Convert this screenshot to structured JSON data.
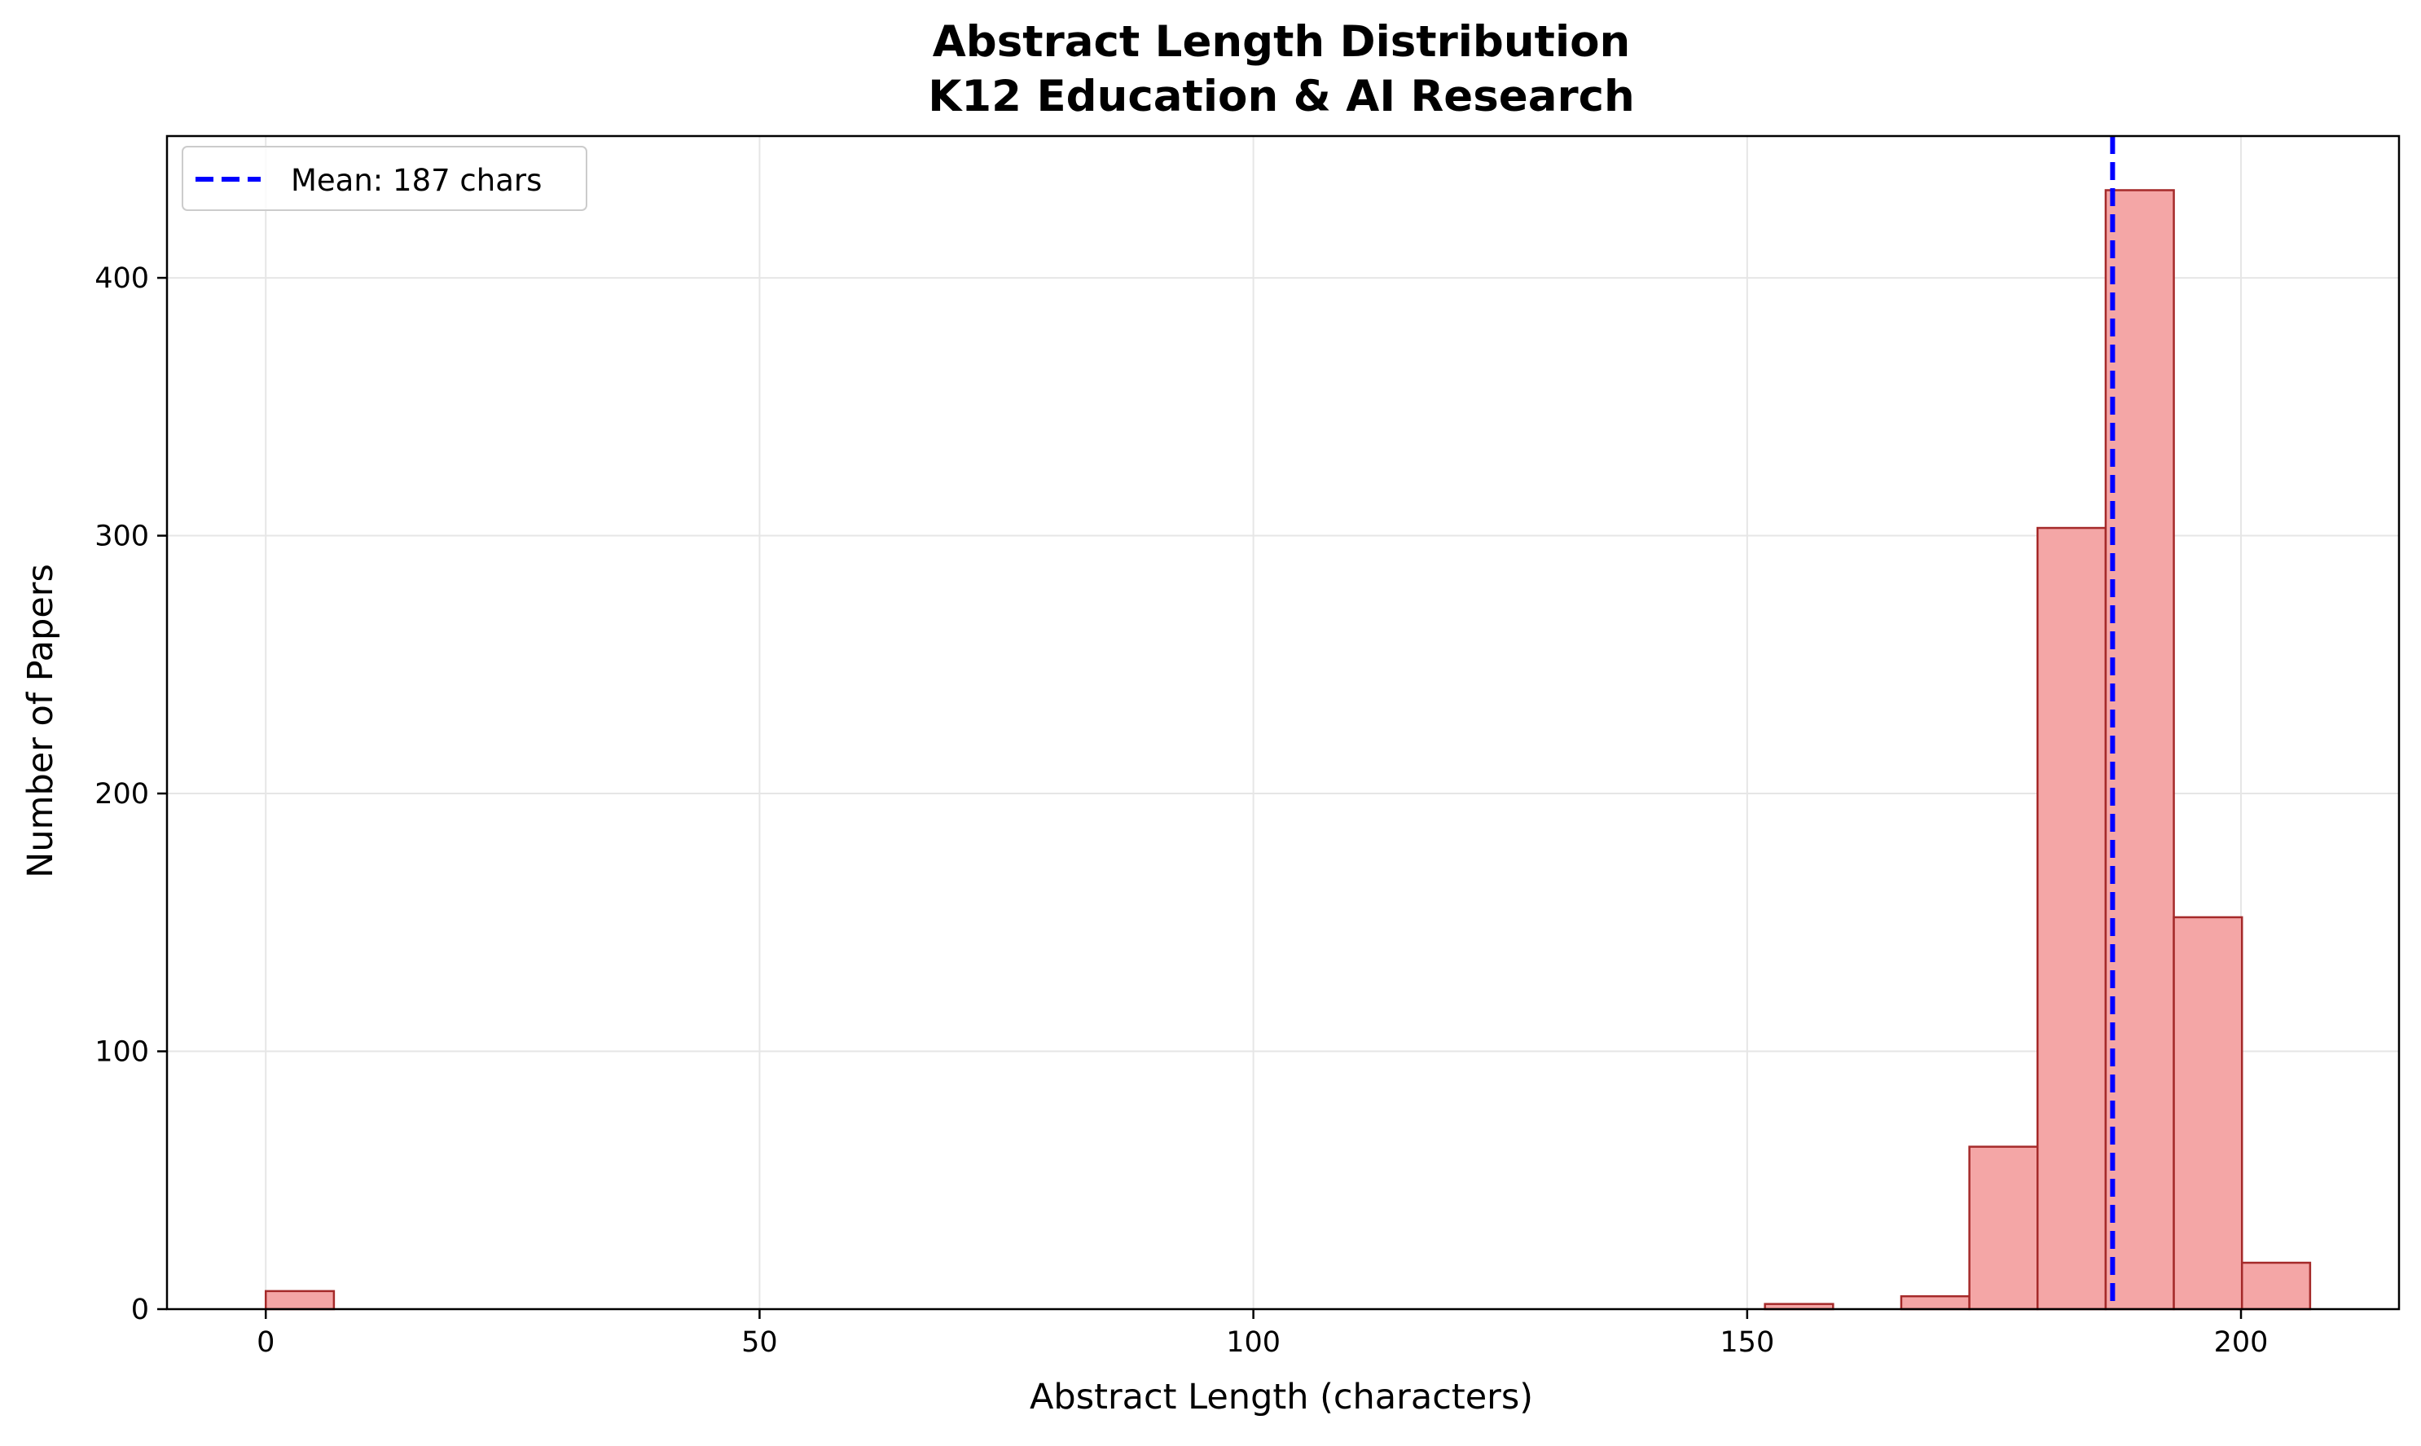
{
  "chart_data": {
    "type": "bar",
    "title": "Abstract Length Distribution",
    "subtitle": "K12 Education & AI Research",
    "xlabel": "Abstract Length (characters)",
    "ylabel": "Number of Papers",
    "xlim": [
      -10,
      216
    ],
    "ylim": [
      0,
      455
    ],
    "xticks": [
      0,
      50,
      100,
      150,
      200
    ],
    "yticks": [
      0,
      100,
      200,
      300,
      400
    ],
    "grid": true,
    "legend": {
      "placement": "top-left",
      "entries": [
        {
          "label": "Mean: 187 chars",
          "style": "dashed-line",
          "color": "#0000ff"
        }
      ]
    },
    "bins": [
      {
        "start": 0.0,
        "end": 6.9,
        "count": 7
      },
      {
        "start": 6.9,
        "end": 13.8,
        "count": 0
      },
      {
        "start": 13.8,
        "end": 20.7,
        "count": 0
      },
      {
        "start": 20.7,
        "end": 27.6,
        "count": 0
      },
      {
        "start": 27.6,
        "end": 34.5,
        "count": 0
      },
      {
        "start": 34.5,
        "end": 41.4,
        "count": 0
      },
      {
        "start": 41.4,
        "end": 48.3,
        "count": 0
      },
      {
        "start": 48.3,
        "end": 55.2,
        "count": 0
      },
      {
        "start": 55.2,
        "end": 62.1,
        "count": 0
      },
      {
        "start": 62.1,
        "end": 69.0,
        "count": 0
      },
      {
        "start": 69.0,
        "end": 75.9,
        "count": 0
      },
      {
        "start": 75.9,
        "end": 82.8,
        "count": 0
      },
      {
        "start": 82.8,
        "end": 89.7,
        "count": 0
      },
      {
        "start": 89.7,
        "end": 96.6,
        "count": 0
      },
      {
        "start": 96.6,
        "end": 103.5,
        "count": 0
      },
      {
        "start": 103.5,
        "end": 110.4,
        "count": 0
      },
      {
        "start": 110.4,
        "end": 117.3,
        "count": 0
      },
      {
        "start": 117.3,
        "end": 124.2,
        "count": 0
      },
      {
        "start": 124.2,
        "end": 131.1,
        "count": 0
      },
      {
        "start": 131.1,
        "end": 138.0,
        "count": 0
      },
      {
        "start": 138.0,
        "end": 144.9,
        "count": 0
      },
      {
        "start": 144.9,
        "end": 151.8,
        "count": 0
      },
      {
        "start": 151.8,
        "end": 158.7,
        "count": 2
      },
      {
        "start": 158.7,
        "end": 165.6,
        "count": 0
      },
      {
        "start": 165.6,
        "end": 172.5,
        "count": 5
      },
      {
        "start": 172.5,
        "end": 179.4,
        "count": 63
      },
      {
        "start": 179.4,
        "end": 186.3,
        "count": 303
      },
      {
        "start": 186.3,
        "end": 193.2,
        "count": 434
      },
      {
        "start": 193.2,
        "end": 200.1,
        "count": 152
      },
      {
        "start": 200.1,
        "end": 207.0,
        "count": 18
      }
    ],
    "mean_line": {
      "value": 187,
      "label": "Mean: 187 chars"
    },
    "colors": {
      "bar_fill": "#f4a6a6",
      "bar_edge": "#a52a2a",
      "mean_line": "#0000ff",
      "grid": "#e6e6e6",
      "axes": "#000000"
    }
  }
}
